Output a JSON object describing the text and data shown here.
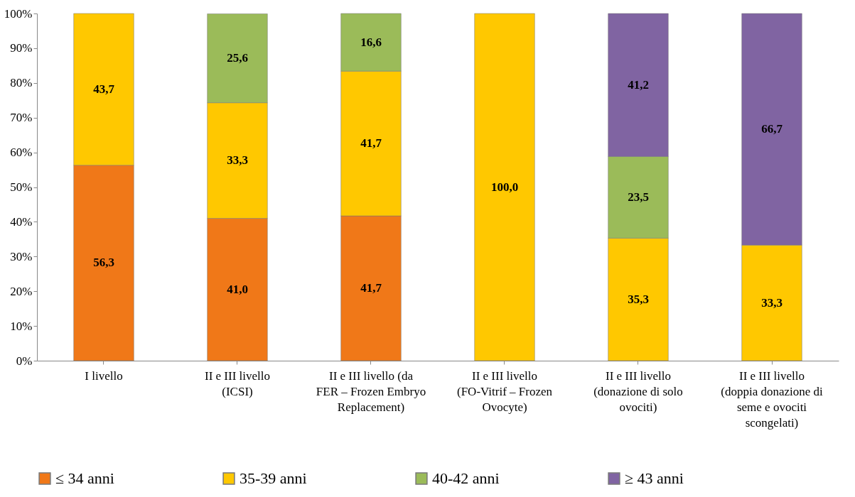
{
  "chart_data": {
    "type": "bar",
    "stacked": true,
    "categories": [
      "I livello",
      "II e III livello (ICSI)",
      "II e III livello (da FER – Frozen Embryo Replacement)",
      "II e III livello (FO-Vitrif – Frozen Ovocyte)",
      "II e III livello (donazione di solo ovociti)",
      "II e III livello (doppia donazione di seme e ovociti scongelati)"
    ],
    "series": [
      {
        "name": "≤ 34 anni",
        "color": "#f07818",
        "values": [
          56.3,
          41.0,
          41.7,
          null,
          null,
          null
        ],
        "value_labels": [
          "56,3",
          "41,0",
          "41,7",
          null,
          null,
          null
        ]
      },
      {
        "name": "35-39 anni",
        "color": "#ffc800",
        "values": [
          43.7,
          33.3,
          41.7,
          100.0,
          35.3,
          33.3
        ],
        "value_labels": [
          "43,7",
          "33,3",
          "41,7",
          "100,0",
          "35,3",
          "33,3"
        ]
      },
      {
        "name": "40-42 anni",
        "color": "#9bbb59",
        "values": [
          null,
          25.6,
          16.6,
          null,
          23.5,
          null
        ],
        "value_labels": [
          null,
          "25,6",
          "16,6",
          null,
          "23,5",
          null
        ]
      },
      {
        "name": "≥ 43 anni",
        "color": "#8064a2",
        "values": [
          null,
          null,
          null,
          null,
          41.2,
          66.7
        ],
        "value_labels": [
          null,
          null,
          null,
          null,
          "41,2",
          "66,7"
        ]
      }
    ],
    "ylim": [
      0,
      100
    ],
    "yticks": [
      {
        "value": 0,
        "label": "0%"
      },
      {
        "value": 10,
        "label": "10%"
      },
      {
        "value": 20,
        "label": "20%"
      },
      {
        "value": 30,
        "label": "30%"
      },
      {
        "value": 40,
        "label": "40%"
      },
      {
        "value": 50,
        "label": "50%"
      },
      {
        "value": 60,
        "label": "60%"
      },
      {
        "value": 70,
        "label": "70%"
      },
      {
        "value": 80,
        "label": "80%"
      },
      {
        "value": 90,
        "label": "90%"
      },
      {
        "value": 100,
        "label": "100%"
      }
    ],
    "grid": false,
    "legend": "bottom"
  }
}
